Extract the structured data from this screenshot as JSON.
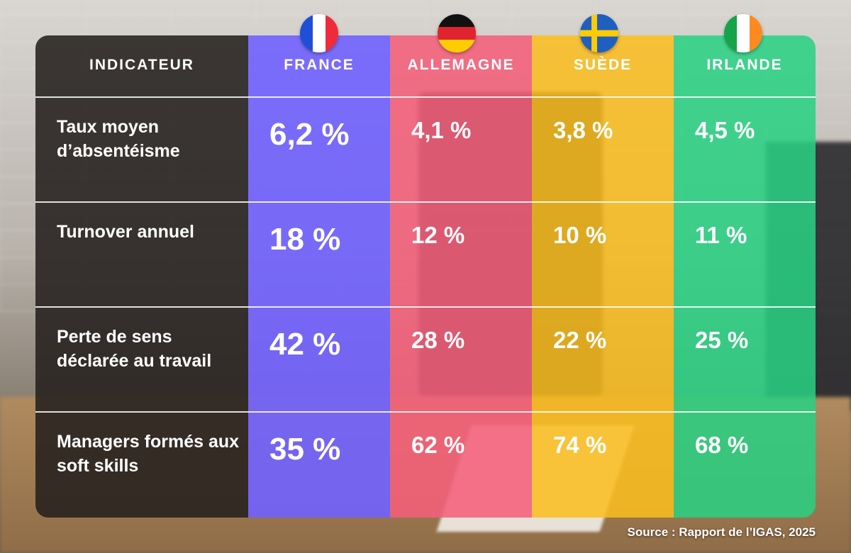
{
  "chart_data": {
    "type": "table",
    "columns": [
      {
        "label": "INDICATEUR"
      },
      {
        "label": "FRANCE",
        "flag": "france-flag-icon",
        "color": "#7062ff"
      },
      {
        "label": "ALLEMAGNE",
        "flag": "germany-flag-icon",
        "color": "#f4607a"
      },
      {
        "label": "SUÈDE",
        "flag": "sweden-flag-icon",
        "color": "#fabe1e"
      },
      {
        "label": "IRLANDE",
        "flag": "ireland-flag-icon",
        "color": "#28d282"
      }
    ],
    "rows": [
      {
        "label": "Taux moyen d’absentéisme",
        "values": [
          "6,2 %",
          "4,1 %",
          "3,8 %",
          "4,5 %"
        ]
      },
      {
        "label": "Turnover annuel",
        "values": [
          "18 %",
          "12 %",
          "10 %",
          "11 %"
        ]
      },
      {
        "label": "Perte de sens déclarée au travail",
        "values": [
          "42 %",
          "28 %",
          "22 %",
          "25 %"
        ]
      },
      {
        "label": "Managers formés aux soft skills",
        "values": [
          "35 %",
          "62 %",
          "74 %",
          "68 %"
        ]
      }
    ],
    "source": "Source : Rapport de l’IGAS, 2025"
  }
}
